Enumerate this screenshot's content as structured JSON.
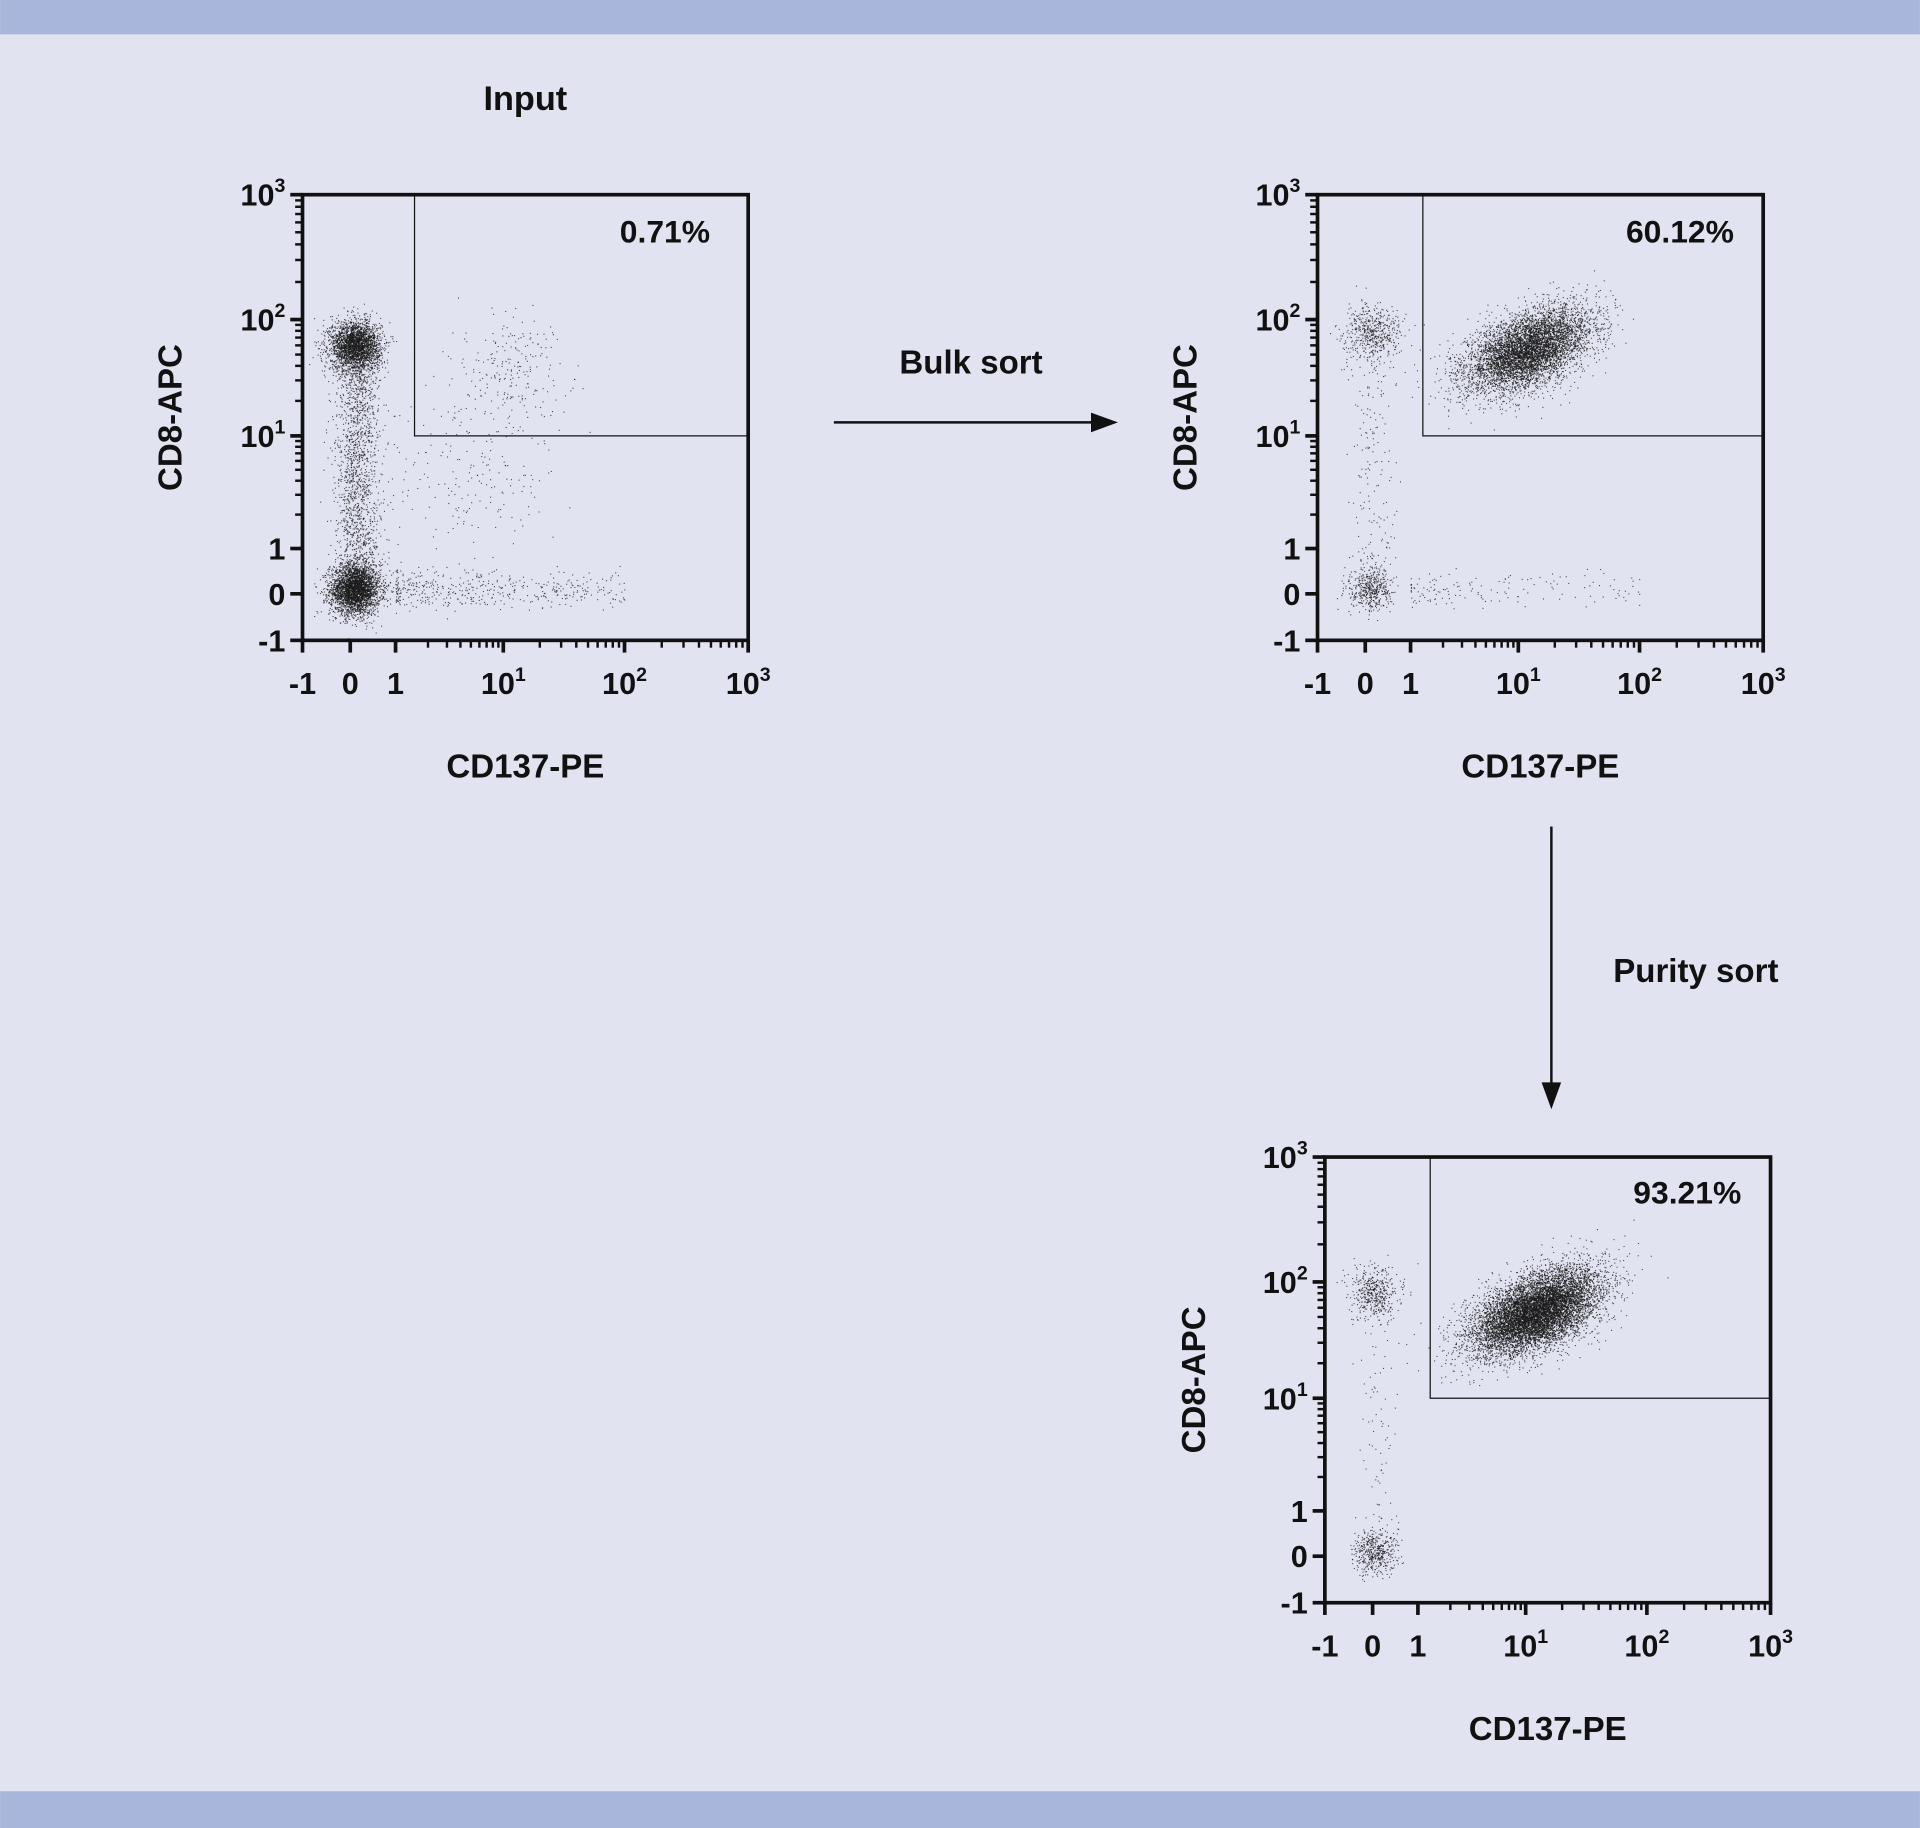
{
  "colors": {
    "background": "#e1e3f0",
    "band": "#a7b6da",
    "ink": "#111111"
  },
  "steps": {
    "bulk_sort": "Bulk sort",
    "purity_sort": "Purity sort"
  },
  "chart_data": [
    {
      "type": "scatter",
      "title": "Input",
      "xlabel": "CD137-PE",
      "ylabel": "CD8-APC",
      "x_scale": "biexponential",
      "y_scale": "biexponential",
      "xlim": [
        -1,
        1000
      ],
      "ylim": [
        -1,
        1000
      ],
      "x_ticks": [
        {
          "base": "-1",
          "exp": ""
        },
        {
          "base": "0",
          "exp": ""
        },
        {
          "base": "1",
          "exp": ""
        },
        {
          "base": "10",
          "exp": "1"
        },
        {
          "base": "10",
          "exp": "2"
        },
        {
          "base": "10",
          "exp": "3"
        }
      ],
      "y_ticks": [
        {
          "base": "-1",
          "exp": ""
        },
        {
          "base": "0",
          "exp": ""
        },
        {
          "base": "1",
          "exp": ""
        },
        {
          "base": "10",
          "exp": "1"
        },
        {
          "base": "10",
          "exp": "2"
        },
        {
          "base": "10",
          "exp": "3"
        }
      ],
      "gate": {
        "x_min": 1.5,
        "y_min": 10,
        "percent_label": "0.71%"
      },
      "populations": [
        {
          "x": 0.1,
          "y": 0.1,
          "count": 3000,
          "spread": 0.9
        },
        {
          "x": 0.1,
          "y": 60,
          "count": 2500,
          "spread": 0.9
        },
        {
          "x": 0.15,
          "y": 3,
          "count": 1800,
          "spread": 2.2,
          "shape": "vertical-streak"
        },
        {
          "x": 5,
          "y": 0.1,
          "count": 450,
          "spread": 2.0,
          "shape": "horizontal-tail"
        },
        {
          "x": 12,
          "y": 40,
          "count": 220,
          "spread": 2.0
        },
        {
          "x": 5,
          "y": 5,
          "count": 200,
          "spread": 3.0
        }
      ]
    },
    {
      "type": "scatter",
      "title": "",
      "xlabel": "CD137-PE",
      "ylabel": "CD8-APC",
      "x_scale": "biexponential",
      "y_scale": "biexponential",
      "xlim": [
        -1,
        1000
      ],
      "ylim": [
        -1,
        1000
      ],
      "x_ticks": [
        {
          "base": "-1",
          "exp": ""
        },
        {
          "base": "0",
          "exp": ""
        },
        {
          "base": "1",
          "exp": ""
        },
        {
          "base": "10",
          "exp": "1"
        },
        {
          "base": "10",
          "exp": "2"
        },
        {
          "base": "10",
          "exp": "3"
        }
      ],
      "y_ticks": [
        {
          "base": "-1",
          "exp": ""
        },
        {
          "base": "0",
          "exp": ""
        },
        {
          "base": "1",
          "exp": ""
        },
        {
          "base": "10",
          "exp": "1"
        },
        {
          "base": "10",
          "exp": "2"
        },
        {
          "base": "10",
          "exp": "3"
        }
      ],
      "gate": {
        "x_min": 1.3,
        "y_min": 10,
        "percent_label": "60.12%"
      },
      "populations": [
        {
          "x": 0.1,
          "y": 0.1,
          "count": 450,
          "spread": 0.8
        },
        {
          "x": 0.1,
          "y": 80,
          "count": 500,
          "spread": 1.0
        },
        {
          "x": 0.2,
          "y": 3,
          "count": 200,
          "spread": 2.0,
          "shape": "vertical-streak"
        },
        {
          "x": 10,
          "y": 0.1,
          "count": 150,
          "spread": 1.6,
          "shape": "horizontal-tail"
        },
        {
          "x": 12,
          "y": 55,
          "count": 6000,
          "spread": 1.3
        }
      ]
    },
    {
      "type": "scatter",
      "title": "",
      "xlabel": "CD137-PE",
      "ylabel": "CD8-APC",
      "x_scale": "biexponential",
      "y_scale": "biexponential",
      "xlim": [
        -1,
        1000
      ],
      "ylim": [
        -1,
        1000
      ],
      "x_ticks": [
        {
          "base": "-1",
          "exp": ""
        },
        {
          "base": "0",
          "exp": ""
        },
        {
          "base": "1",
          "exp": ""
        },
        {
          "base": "10",
          "exp": "1"
        },
        {
          "base": "10",
          "exp": "2"
        },
        {
          "base": "10",
          "exp": "3"
        }
      ],
      "y_ticks": [
        {
          "base": "-1",
          "exp": ""
        },
        {
          "base": "0",
          "exp": ""
        },
        {
          "base": "1",
          "exp": ""
        },
        {
          "base": "10",
          "exp": "1"
        },
        {
          "base": "10",
          "exp": "2"
        },
        {
          "base": "10",
          "exp": "3"
        }
      ],
      "gate": {
        "x_min": 1.3,
        "y_min": 10,
        "percent_label": "93.21%"
      },
      "populations": [
        {
          "x": 0.05,
          "y": 0.1,
          "count": 450,
          "spread": 0.8
        },
        {
          "x": 0.05,
          "y": 80,
          "count": 450,
          "spread": 0.9
        },
        {
          "x": 0.1,
          "y": 3,
          "count": 100,
          "spread": 2.0,
          "shape": "vertical-streak"
        },
        {
          "x": 12,
          "y": 55,
          "count": 9000,
          "spread": 1.3
        }
      ]
    }
  ]
}
